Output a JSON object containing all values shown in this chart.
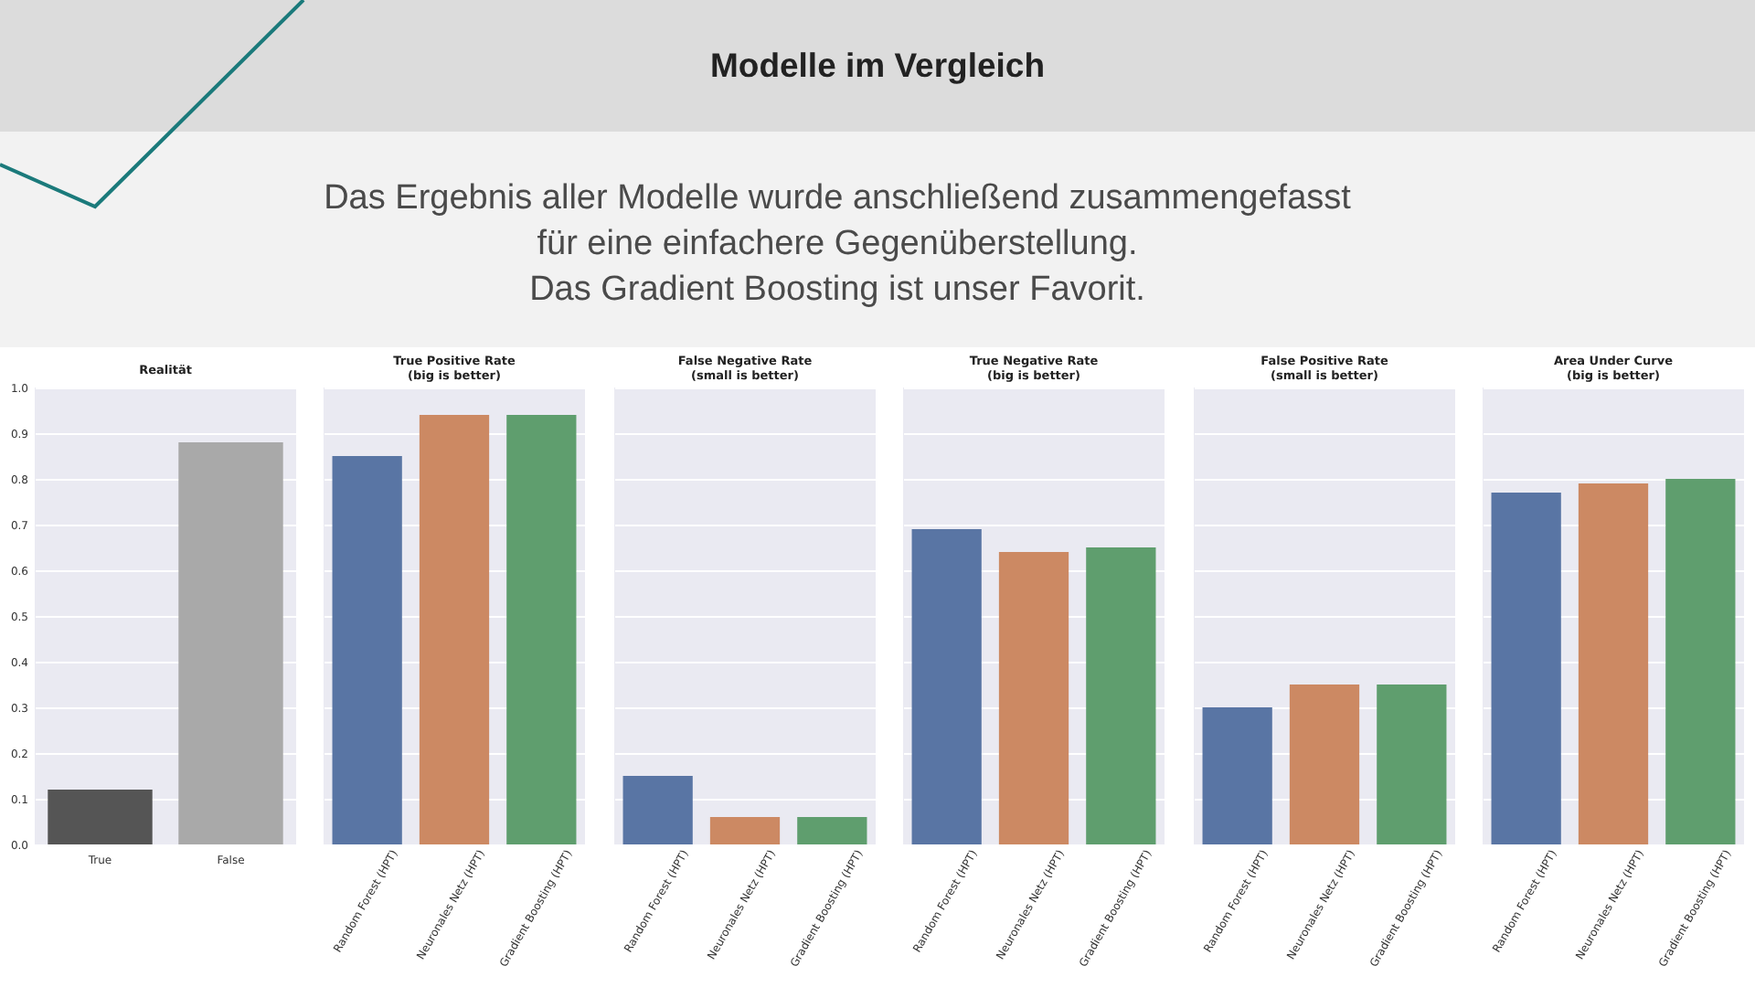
{
  "chart_data": [
    {
      "type": "other",
      "title": "Modelle im Vergleich",
      "annotations": [
        "Das Ergebnis aller Modelle wurde anschließend zusammengefasst",
        "für eine einfachere Gegenüberstellung.",
        "Das Gradient Boosting ist unser Favorit."
      ]
    },
    {
      "type": "bar",
      "title": "Realität",
      "categories": [
        "True",
        "False"
      ],
      "values": [
        0.12,
        0.88
      ],
      "colors": [
        "#555555",
        "#a9a9a9"
      ],
      "ylim": [
        0,
        1
      ],
      "yticks": [
        {
          "value": 0,
          "label": "0.0"
        },
        0.1,
        0.2,
        0.3,
        0.4,
        0.5,
        0.6,
        0.7,
        0.8,
        0.9,
        {
          "value": 1,
          "label": "1.0"
        }
      ],
      "grid": "y"
    },
    {
      "type": "bar",
      "title": "True Positive Rate",
      "subtitle": "(big is better)",
      "categories": [
        "Random Forest (HPT)",
        "Neuronales Netz (HPT)",
        "Gradient Boosting (HPT)"
      ],
      "values": [
        0.85,
        0.94,
        0.94
      ],
      "colors": [
        "#5975a4",
        "#cc8963",
        "#5f9e6e"
      ],
      "ylim": [
        0,
        1
      ],
      "yticks": [
        0,
        0.1,
        0.2,
        0.3,
        0.4,
        0.5,
        0.6,
        0.7,
        0.8,
        0.9,
        1
      ],
      "grid": "y",
      "tick_labels": "x"
    },
    {
      "type": "bar",
      "title": "False Negative Rate",
      "subtitle": "(small is better)",
      "categories": [
        "Random Forest (HPT)",
        "Neuronales Netz (HPT)",
        "Gradient Boosting (HPT)"
      ],
      "values": [
        0.15,
        0.06,
        0.06
      ],
      "colors": [
        "#5975a4",
        "#cc8963",
        "#5f9e6e"
      ],
      "ylim": [
        0,
        1
      ],
      "yticks": [
        0,
        0.1,
        0.2,
        0.3,
        0.4,
        0.5,
        0.6,
        0.7,
        0.8,
        0.9,
        1
      ],
      "grid": "y",
      "tick_labels": "x"
    },
    {
      "type": "bar",
      "title": "True Negative Rate",
      "subtitle": "(big is better)",
      "categories": [
        "Random Forest (HPT)",
        "Neuronales Netz (HPT)",
        "Gradient Boosting (HPT)"
      ],
      "values": [
        0.69,
        0.64,
        0.65
      ],
      "colors": [
        "#5975a4",
        "#cc8963",
        "#5f9e6e"
      ],
      "ylim": [
        0,
        1
      ],
      "yticks": [
        0,
        0.1,
        0.2,
        0.3,
        0.4,
        0.5,
        0.6,
        0.7,
        0.8,
        0.9,
        1
      ],
      "grid": "y",
      "tick_labels": "x"
    },
    {
      "type": "bar",
      "title": "False Positive Rate",
      "subtitle": "(small is better)",
      "categories": [
        "Random Forest (HPT)",
        "Neuronales Netz (HPT)",
        "Gradient Boosting (HPT)"
      ],
      "values": [
        0.3,
        0.35,
        0.35
      ],
      "colors": [
        "#5975a4",
        "#cc8963",
        "#5f9e6e"
      ],
      "ylim": [
        0,
        1
      ],
      "yticks": [
        0,
        0.1,
        0.2,
        0.3,
        0.4,
        0.5,
        0.6,
        0.7,
        0.8,
        0.9,
        1
      ],
      "grid": "y",
      "tick_labels": "x"
    },
    {
      "type": "bar",
      "title": "Area Under Curve",
      "subtitle": "(big is better)",
      "categories": [
        "Random Forest (HPT)",
        "Neuronales Netz (HPT)",
        "Gradient Boosting (HPT)"
      ],
      "values": [
        0.77,
        0.79,
        0.8
      ],
      "colors": [
        "#5975a4",
        "#cc8963",
        "#5f9e6e"
      ],
      "ylim": [
        0,
        1
      ],
      "yticks": [
        0,
        0.1,
        0.2,
        0.3,
        0.4,
        0.5,
        0.6,
        0.7,
        0.8,
        0.9,
        1
      ],
      "grid": "y",
      "tick_labels": "x"
    }
  ]
}
